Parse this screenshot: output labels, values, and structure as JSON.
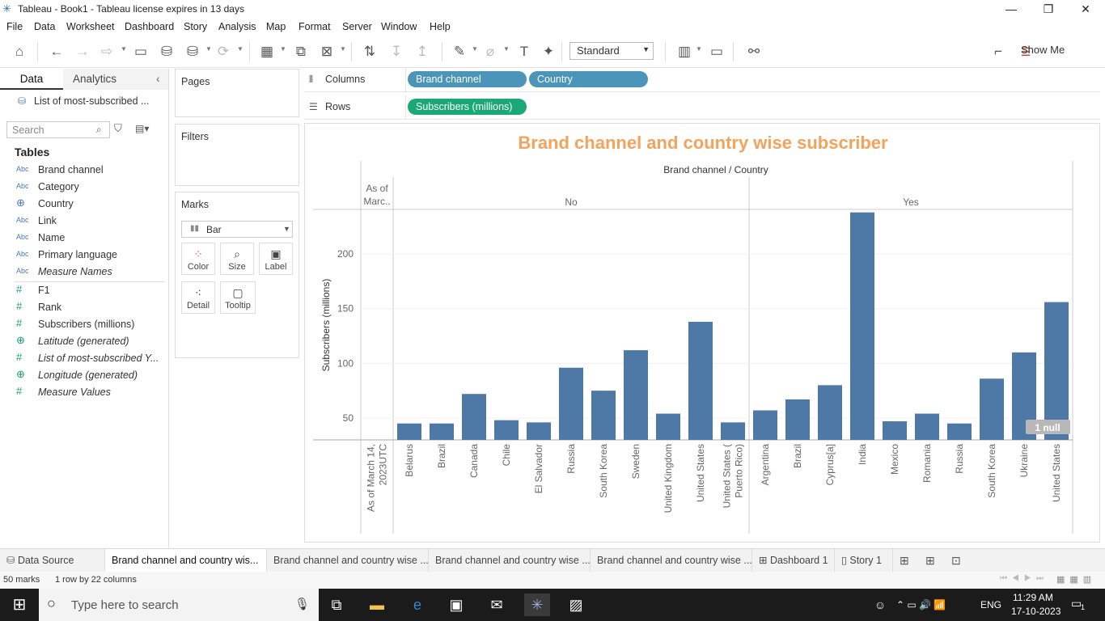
{
  "window": {
    "title": "Tableau - Book1 - Tableau license expires in 13 days"
  },
  "menu": [
    "File",
    "Data",
    "Worksheet",
    "Dashboard",
    "Story",
    "Analysis",
    "Map",
    "Format",
    "Server",
    "Window",
    "Help"
  ],
  "toolbar": {
    "fit": "Standard",
    "show_me": "Show Me"
  },
  "left_pane": {
    "tab_data": "Data",
    "tab_analytics": "Analytics",
    "datasource": "List of most-subscribed ...",
    "search_placeholder": "Search",
    "tables_label": "Tables",
    "dimensions": [
      {
        "icon": "Abc",
        "name": "Brand channel",
        "italic": false
      },
      {
        "icon": "Abc",
        "name": "Category",
        "italic": false
      },
      {
        "icon": "globe",
        "name": "Country",
        "italic": false
      },
      {
        "icon": "Abc",
        "name": "Link",
        "italic": false
      },
      {
        "icon": "Abc",
        "name": "Name",
        "italic": false
      },
      {
        "icon": "Abc",
        "name": "Primary language",
        "italic": false
      },
      {
        "icon": "Abc",
        "name": "Measure Names",
        "italic": true
      }
    ],
    "measures": [
      {
        "icon": "#",
        "name": "F1",
        "italic": false
      },
      {
        "icon": "#",
        "name": "Rank",
        "italic": false
      },
      {
        "icon": "#",
        "name": "Subscribers (millions)",
        "italic": false
      },
      {
        "icon": "globe",
        "name": "Latitude (generated)",
        "italic": true
      },
      {
        "icon": "#",
        "name": "List of most-subscribed Y...",
        "italic": true
      },
      {
        "icon": "globe",
        "name": "Longitude (generated)",
        "italic": true
      },
      {
        "icon": "#",
        "name": "Measure Values",
        "italic": true
      }
    ]
  },
  "cards": {
    "pages": "Pages",
    "filters": "Filters",
    "marks": "Marks",
    "mark_type": "Bar",
    "mark_buttons": [
      "Color",
      "Size",
      "Label",
      "Detail",
      "Tooltip"
    ]
  },
  "shelves": {
    "columns_label": "Columns",
    "rows_label": "Rows",
    "columns_pills": [
      "Brand channel",
      "Country"
    ],
    "rows_pills": [
      "Subscribers (millions)"
    ]
  },
  "chart_data": {
    "type": "bar",
    "title": "Brand channel and country wise subscriber",
    "header_title": "Brand channel / Country",
    "ylabel": "Subscribers (millions)",
    "ylim": [
      30,
      240
    ],
    "yticks": [
      50,
      100,
      150,
      200
    ],
    "groups": [
      {
        "name": "As of March 14, 2023UTC",
        "short": "As of\nMarc..",
        "categories": [
          "As of March 14,\n2023UTC"
        ],
        "values": [
          null
        ]
      },
      {
        "name": "No",
        "short": "No",
        "categories": [
          "Belarus",
          "Brazil",
          "Canada",
          "Chile",
          "El Salvador",
          "Russia",
          "South Korea",
          "Sweden",
          "United Kingdom",
          "United States",
          "United States (\nPuerto Rico)"
        ],
        "values": [
          45,
          45,
          72,
          48,
          46,
          96,
          75,
          112,
          54,
          138,
          46
        ]
      },
      {
        "name": "Yes",
        "short": "Yes",
        "categories": [
          "Argentina",
          "Brazil",
          "Cyprus[a]",
          "India",
          "Mexico",
          "Romania",
          "Russia",
          "South Korea",
          "Ukraine",
          "United States"
        ],
        "values": [
          57,
          67,
          80,
          238,
          47,
          54,
          45,
          86,
          110,
          156
        ]
      }
    ],
    "bar_color": "#4e79a7",
    "title_color": "#f5a25d",
    "null_indicator": "1 null"
  },
  "sheet_tabs": {
    "data_source": "Data Source",
    "tabs": [
      "Brand channel and country wis...",
      "Brand channel and country wise ...",
      "Brand channel and country wise ...",
      "Brand channel and country wise ..."
    ],
    "dashboard": "Dashboard 1",
    "story": "Story 1"
  },
  "status": {
    "marks": "50 marks",
    "dims": "1 row by 22 columns"
  },
  "taskbar": {
    "search_placeholder": "Type here to search",
    "lang": "ENG",
    "time": "11:29 AM",
    "date": "17-10-2023",
    "notif": "1"
  }
}
